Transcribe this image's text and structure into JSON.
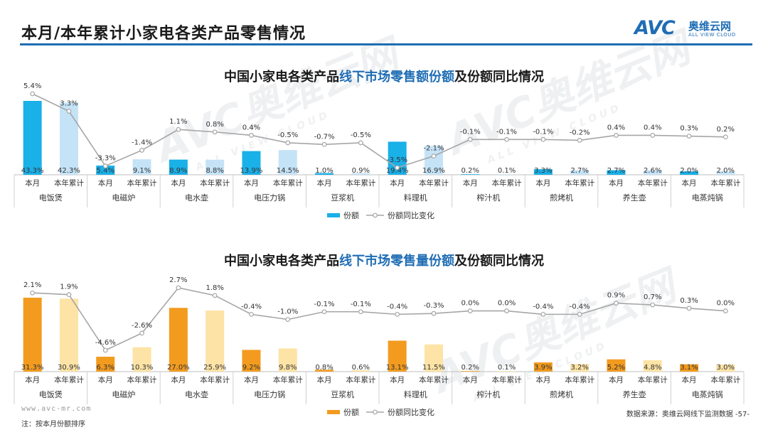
{
  "header": {
    "title": "本月/本年累计小家电各类产品零售情况",
    "logo_text": "AVC",
    "logo_cn": "奥维云网",
    "logo_en": "ALL VIEW CLOUD"
  },
  "footer": {
    "site": "www.avc-mr.com",
    "note": "注：按本月份额排序",
    "source": "数据来源：奥维云网线下监测数据",
    "page": "-57-"
  },
  "watermark": {
    "text": "AVC奥维云网",
    "sub": "ALL VIEW CLOUD"
  },
  "colors": {
    "chart1_current": "#1ab0e8",
    "chart1_cumulative": "#c5e3f7",
    "chart2_current": "#f29b1f",
    "chart2_cumulative": "#fde3a5",
    "yoy_line": "#a6a6a6",
    "title_highlight": "#1f6db4"
  },
  "chart1": {
    "title_pre": "中国小家电各类产品",
    "title_hl": "线下市场零售额份额",
    "title_post": "及份额同比情况"
  },
  "chart2": {
    "title_pre": "中国小家电各类产品",
    "title_hl": "线下市场零售量份额",
    "title_post": "及份额同比情况"
  },
  "chart_data": [
    {
      "type": "bar",
      "groups": [
        "电饭煲",
        "电磁炉",
        "电水壶",
        "电压力锅",
        "豆浆机",
        "料理机",
        "榨汁机",
        "煎烤机",
        "养生壶",
        "电蒸炖锅"
      ],
      "period_labels": [
        "本月",
        "本年累计"
      ],
      "categories": [
        "本月",
        "本年累计",
        "本月",
        "本年累计",
        "本月",
        "本年累计",
        "本月",
        "本年累计",
        "本月",
        "本年累计",
        "本月",
        "本年累计",
        "本月",
        "本年累计",
        "本月",
        "本年累计",
        "本月",
        "本年累计",
        "本月",
        "本年累计"
      ],
      "series": [
        {
          "name": "份额",
          "type": "bar",
          "values": [
            43.3,
            42.3,
            5.4,
            9.1,
            8.9,
            8.8,
            13.9,
            14.5,
            1.0,
            0.9,
            19.4,
            16.9,
            0.2,
            0.1,
            3.3,
            2.7,
            2.7,
            2.6,
            2.0,
            2.0
          ],
          "labels": [
            "43.3%",
            "42.3%",
            "5.4%",
            "9.1%",
            "8.9%",
            "8.8%",
            "13.9%",
            "14.5%",
            "1.0%",
            "0.9%",
            "19.4%",
            "16.9%",
            "0.2%",
            "0.1%",
            "3.3%",
            "2.7%",
            "2.7%",
            "2.6%",
            "2.0%",
            "2.0%"
          ]
        },
        {
          "name": "份额同比变化",
          "type": "line",
          "values": [
            5.4,
            3.3,
            -3.3,
            -1.4,
            1.1,
            0.8,
            0.4,
            -0.5,
            -0.7,
            -0.5,
            -3.5,
            -2.1,
            -0.1,
            -0.1,
            -0.1,
            -0.2,
            0.4,
            0.4,
            0.3,
            0.2
          ],
          "labels": [
            "5.4%",
            "3.3%",
            "-3.3%",
            "-1.4%",
            "1.1%",
            "0.8%",
            "0.4%",
            "-0.5%",
            "-0.7%",
            "-0.5%",
            "-3.5%",
            "-2.1%",
            "-0.1%",
            "-0.1%",
            "-0.1%",
            "-0.2%",
            "0.4%",
            "0.4%",
            "0.3%",
            "0.2%"
          ]
        }
      ],
      "legend": [
        "份额",
        "份额同比变化"
      ],
      "legend_position": "bottom"
    },
    {
      "type": "bar",
      "groups": [
        "电饭煲",
        "电磁炉",
        "电水壶",
        "电压力锅",
        "豆浆机",
        "料理机",
        "榨汁机",
        "煎烤机",
        "养生壶",
        "电蒸炖锅"
      ],
      "period_labels": [
        "本月",
        "本年累计"
      ],
      "categories": [
        "本月",
        "本年累计",
        "本月",
        "本年累计",
        "本月",
        "本年累计",
        "本月",
        "本年累计",
        "本月",
        "本年累计",
        "本月",
        "本年累计",
        "本月",
        "本年累计",
        "本月",
        "本年累计",
        "本月",
        "本年累计",
        "本月",
        "本年累计"
      ],
      "series": [
        {
          "name": "份额",
          "type": "bar",
          "values": [
            31.3,
            30.9,
            6.3,
            10.3,
            27.0,
            25.9,
            9.2,
            9.8,
            0.8,
            0.6,
            13.1,
            11.5,
            0.2,
            0.1,
            3.9,
            3.2,
            5.2,
            4.8,
            3.1,
            3.0
          ],
          "labels": [
            "31.3%",
            "30.9%",
            "6.3%",
            "10.3%",
            "27.0%",
            "25.9%",
            "9.2%",
            "9.8%",
            "0.8%",
            "0.6%",
            "13.1%",
            "11.5%",
            "0.2%",
            "0.1%",
            "3.9%",
            "3.2%",
            "5.2%",
            "4.8%",
            "3.1%",
            "3.0%"
          ]
        },
        {
          "name": "份额同比变化",
          "type": "line",
          "values": [
            2.1,
            1.9,
            -4.6,
            -2.6,
            2.7,
            1.8,
            -0.4,
            -1.0,
            -0.1,
            -0.1,
            -0.4,
            -0.3,
            0.0,
            0.0,
            -0.4,
            -0.4,
            0.9,
            0.7,
            0.3,
            0.0
          ],
          "labels": [
            "2.1%",
            "1.9%",
            "-4.6%",
            "-2.6%",
            "2.7%",
            "1.8%",
            "-0.4%",
            "-1.0%",
            "-0.1%",
            "-0.1%",
            "-0.4%",
            "-0.3%",
            "0.0%",
            "0.0%",
            "-0.4%",
            "-0.4%",
            "0.9%",
            "0.7%",
            "0.3%",
            "0.0%"
          ]
        }
      ],
      "legend": [
        "份额",
        "份额同比变化"
      ],
      "legend_position": "bottom"
    }
  ]
}
